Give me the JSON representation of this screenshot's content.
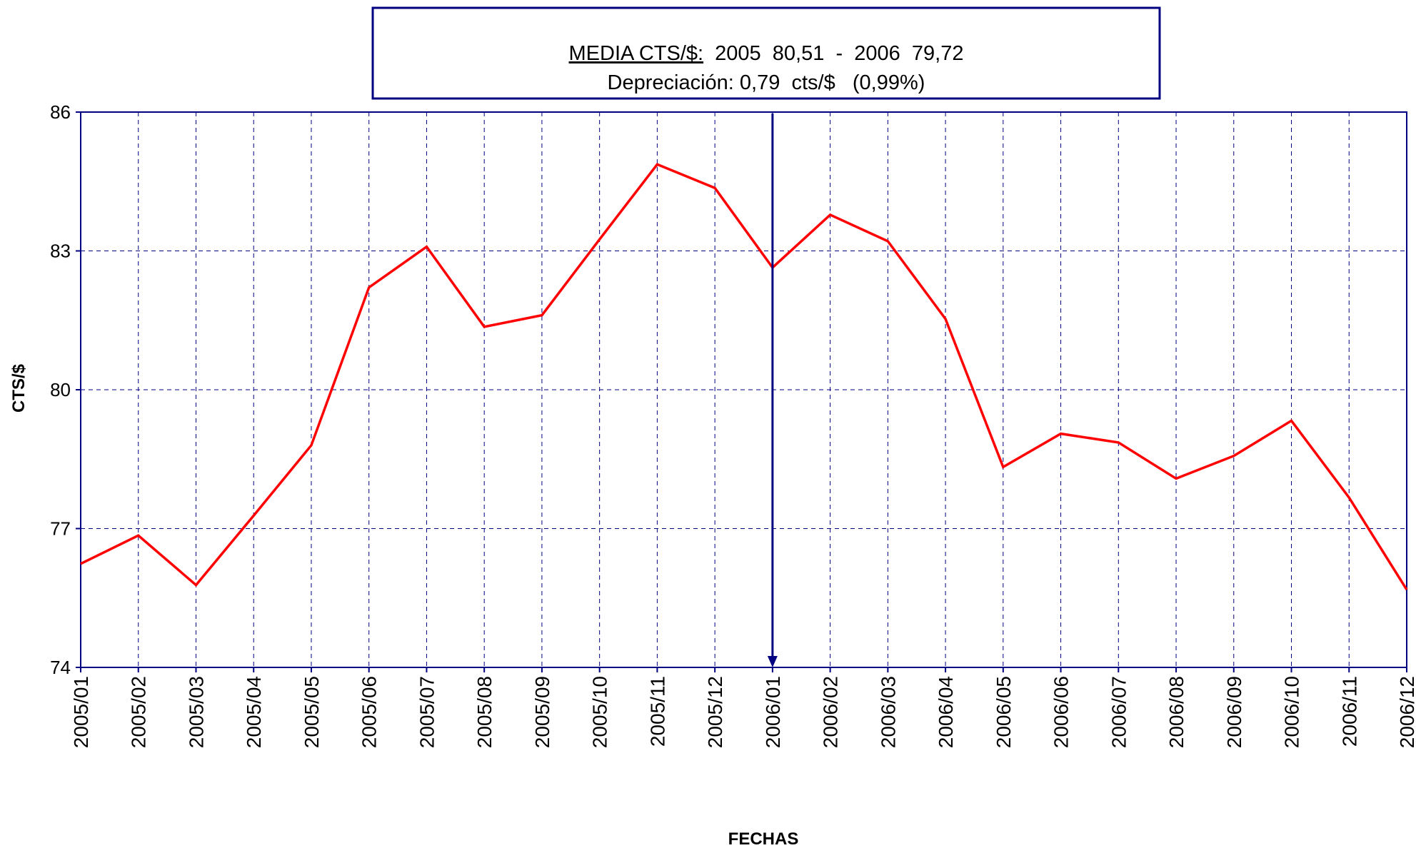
{
  "chart_data": {
    "type": "line",
    "annotation": {
      "label": "MEDIA CTS/$:",
      "text": "  2005  80,51  -  2006  79,72",
      "line2": "Depreciación: 0,79  cts/$   (0,99%)"
    },
    "ylabel": "CTS/$",
    "xlabel": "FECHAS",
    "categories": [
      "2005/01",
      "2005/02",
      "2005/03",
      "2005/04",
      "2005/05",
      "2005/06",
      "2005/07",
      "2005/08",
      "2005/09",
      "2005/10",
      "2005/11",
      "2005/12",
      "2006/01",
      "2006/02",
      "2006/03",
      "2006/04",
      "2006/05",
      "2006/06",
      "2006/07",
      "2006/08",
      "2006/09",
      "2006/10",
      "2006/11",
      "2006/12"
    ],
    "series": [
      {
        "name": "CTS/$",
        "color": "#ff0000",
        "values": [
          76.24,
          76.85,
          75.78,
          77.28,
          78.8,
          82.21,
          83.09,
          81.36,
          81.61,
          83.25,
          84.87,
          84.36,
          82.64,
          83.78,
          83.21,
          81.53,
          78.33,
          79.05,
          78.86,
          78.08,
          78.57,
          79.33,
          77.67,
          75.68
        ]
      }
    ],
    "ylim": [
      74,
      86
    ],
    "yticks": [
      74,
      77,
      80,
      83,
      86
    ],
    "grid": true
  }
}
